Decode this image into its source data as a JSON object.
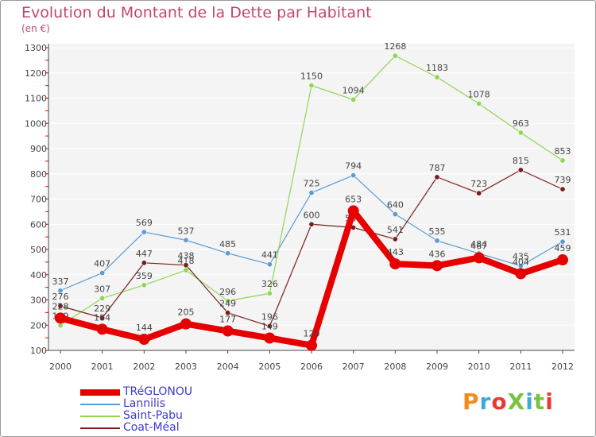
{
  "title": "Evolution du Montant de la Dette par Habitant",
  "subtitle": "(en €)",
  "logo": {
    "text": "ProXiti",
    "colors": [
      "#f28c1e",
      "#3fa9d6",
      "#e8392f",
      "#7cc242",
      "#3fa9d6",
      "#7cc242",
      "#e8392f"
    ]
  },
  "chart_data": {
    "type": "line",
    "title": "Evolution du Montant de la Dette par Habitant",
    "unit": "(en €)",
    "x": [
      "2000",
      "2001",
      "2002",
      "2003",
      "2004",
      "2005",
      "2006",
      "2007",
      "2008",
      "2009",
      "2010",
      "2011",
      "2012"
    ],
    "yticks": [
      100,
      200,
      300,
      400,
      500,
      600,
      700,
      800,
      900,
      1000,
      1100,
      1200,
      1300
    ],
    "ylim": [
      100,
      1300
    ],
    "grid": "horizontal",
    "legend_position": "bottom-left",
    "series": [
      {
        "name": "Lannilis",
        "color": "#5b9bd5",
        "values": [
          337,
          407,
          569,
          537,
          485,
          441,
          725,
          794,
          640,
          535,
          484,
          435,
          531
        ]
      },
      {
        "name": "Saint-Pabu",
        "color": "#8ed654",
        "values": [
          199,
          307,
          359,
          418,
          296,
          326,
          1150,
          1094,
          1268,
          1183,
          1078,
          963,
          853
        ]
      },
      {
        "name": "Coat-Méal",
        "color": "#7a1c1c",
        "values": [
          276,
          229,
          447,
          438,
          249,
          196,
          600,
          587,
          541,
          787,
          723,
          815,
          739
        ]
      },
      {
        "name": "TRéGLONOU",
        "color": "#e60000",
        "values": [
          228,
          184,
          144,
          205,
          177,
          149,
          120,
          653,
          443,
          436,
          467,
          404,
          459
        ]
      }
    ],
    "legend": [
      {
        "name": "TRéGLONOU",
        "color": "#e60000",
        "width": 6
      },
      {
        "name": "Lannilis",
        "color": "#5b9bd5",
        "width": 2
      },
      {
        "name": "Saint-Pabu",
        "color": "#8ed654",
        "width": 2
      },
      {
        "name": "Coat-Méal",
        "color": "#7a1c1c",
        "width": 2
      }
    ]
  }
}
